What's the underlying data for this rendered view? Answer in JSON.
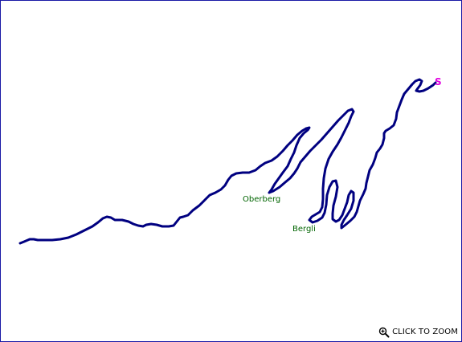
{
  "map": {
    "start_label": "S",
    "places": {
      "oberberg": "Oberberg",
      "bergli": "Bergli"
    },
    "zoom_label": "CLICK TO ZOOM",
    "zoom_icon": "magnifier-zoom-icon",
    "colors": {
      "route": "#000080",
      "border": "#1a1aa6",
      "place_label": "#006400",
      "start_marker": "#e000e0",
      "background": "#ffffff"
    }
  }
}
